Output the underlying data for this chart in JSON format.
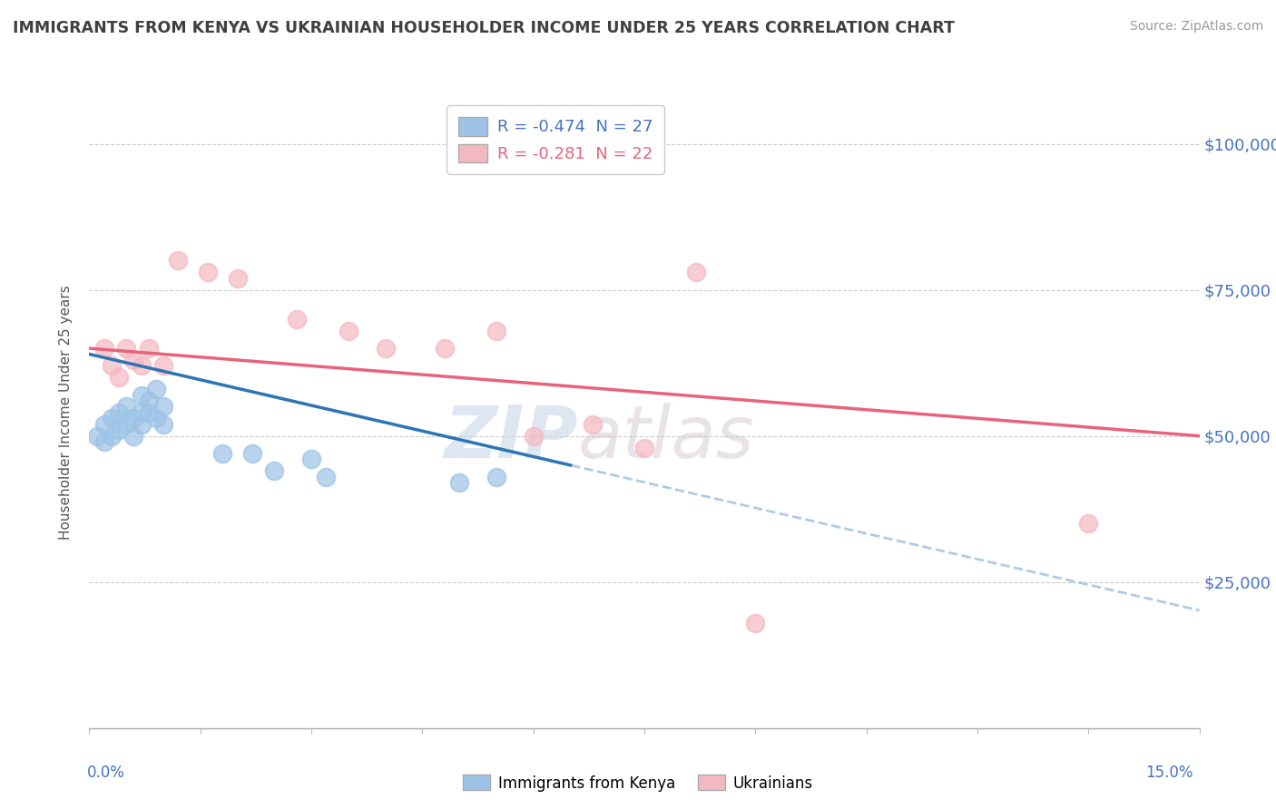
{
  "title": "IMMIGRANTS FROM KENYA VS UKRAINIAN HOUSEHOLDER INCOME UNDER 25 YEARS CORRELATION CHART",
  "source": "Source: ZipAtlas.com",
  "ylabel": "Householder Income Under 25 years",
  "legend_top": [
    {
      "label": "R = -0.474  N = 27",
      "color": "#4472c4"
    },
    {
      "label": "R = -0.281  N = 22",
      "color": "#e8637a"
    }
  ],
  "legend_bottom": [
    "Immigrants from Kenya",
    "Ukrainians"
  ],
  "yticks": [
    0,
    25000,
    50000,
    75000,
    100000
  ],
  "ytick_labels": [
    "",
    "$25,000",
    "$50,000",
    "$75,000",
    "$100,000"
  ],
  "xlim": [
    0.0,
    0.15
  ],
  "ylim": [
    0,
    108000
  ],
  "kenya_color": "#9dc3e6",
  "ukraine_color": "#f4b8c1",
  "kenya_line_color": "#2e75b6",
  "ukraine_line_color": "#e8637a",
  "dashed_line_color": "#9dc3e6",
  "watermark_zip": "ZIP",
  "watermark_atlas": "atlas",
  "kenya_x": [
    0.001,
    0.002,
    0.002,
    0.003,
    0.003,
    0.004,
    0.004,
    0.005,
    0.005,
    0.006,
    0.006,
    0.007,
    0.007,
    0.007,
    0.008,
    0.008,
    0.009,
    0.009,
    0.01,
    0.01,
    0.018,
    0.022,
    0.025,
    0.03,
    0.032,
    0.05,
    0.055
  ],
  "kenya_y": [
    50000,
    52000,
    49000,
    53000,
    50000,
    54000,
    51000,
    55000,
    52000,
    53000,
    50000,
    57000,
    54000,
    52000,
    56000,
    54000,
    58000,
    53000,
    55000,
    52000,
    47000,
    47000,
    44000,
    46000,
    43000,
    42000,
    43000
  ],
  "ukraine_x": [
    0.002,
    0.003,
    0.004,
    0.005,
    0.006,
    0.007,
    0.008,
    0.01,
    0.012,
    0.016,
    0.02,
    0.028,
    0.035,
    0.04,
    0.048,
    0.055,
    0.06,
    0.068,
    0.075,
    0.082,
    0.09,
    0.135
  ],
  "ukraine_y": [
    65000,
    62000,
    60000,
    65000,
    63000,
    62000,
    65000,
    62000,
    80000,
    78000,
    77000,
    70000,
    68000,
    65000,
    65000,
    68000,
    50000,
    52000,
    48000,
    78000,
    18000,
    35000
  ],
  "kenya_line_x0": 0.0,
  "kenya_line_y0": 64000,
  "kenya_line_x1": 0.065,
  "kenya_line_y1": 45000,
  "ukraine_line_x0": 0.0,
  "ukraine_line_y0": 65000,
  "ukraine_line_x1": 0.15,
  "ukraine_line_y1": 50000
}
